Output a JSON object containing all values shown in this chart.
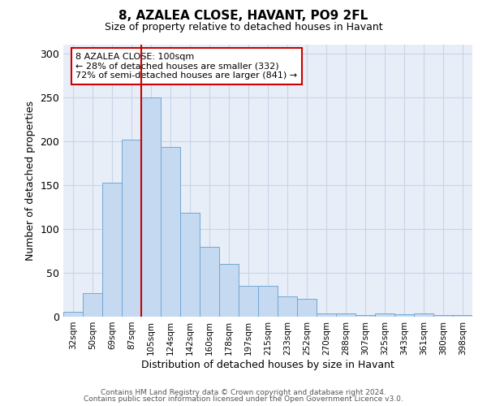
{
  "title": "8, AZALEA CLOSE, HAVANT, PO9 2FL",
  "subtitle": "Size of property relative to detached houses in Havant",
  "xlabel": "Distribution of detached houses by size in Havant",
  "ylabel": "Number of detached properties",
  "bar_labels": [
    "32sqm",
    "50sqm",
    "69sqm",
    "87sqm",
    "105sqm",
    "124sqm",
    "142sqm",
    "160sqm",
    "178sqm",
    "197sqm",
    "215sqm",
    "233sqm",
    "252sqm",
    "270sqm",
    "288sqm",
    "307sqm",
    "325sqm",
    "343sqm",
    "361sqm",
    "380sqm",
    "398sqm"
  ],
  "bar_values": [
    6,
    27,
    153,
    202,
    250,
    193,
    118,
    80,
    60,
    35,
    35,
    23,
    20,
    4,
    4,
    2,
    4,
    3,
    4,
    2,
    2
  ],
  "bar_color": "#c5d9f0",
  "bar_edge_color": "#6fa8d6",
  "vline_x_index": 4,
  "vline_color": "#cc0000",
  "ylim": [
    0,
    310
  ],
  "yticks": [
    0,
    50,
    100,
    150,
    200,
    250,
    300
  ],
  "annotation_title": "8 AZALEA CLOSE: 100sqm",
  "annotation_line1": "← 28% of detached houses are smaller (332)",
  "annotation_line2": "72% of semi-detached houses are larger (841) →",
  "annotation_box_color": "#cc0000",
  "footer_line1": "Contains HM Land Registry data © Crown copyright and database right 2024.",
  "footer_line2": "Contains public sector information licensed under the Open Government Licence v3.0.",
  "background_color": "#ffffff",
  "grid_color": "#c8d4e8",
  "plot_bg_color": "#e8eef8"
}
